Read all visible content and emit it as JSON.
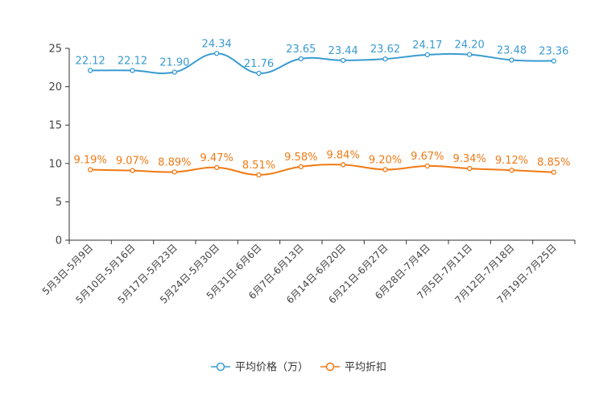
{
  "chart_data": {
    "type": "line",
    "title": "",
    "xlabel": "",
    "ylabel": "",
    "ylim": [
      0,
      25
    ],
    "yticks": [
      0,
      5,
      10,
      15,
      20,
      25
    ],
    "grid": false,
    "legend_position": "bottom",
    "categories": [
      "5月3日-5月9日",
      "5月10日-5月16日",
      "5月17日-5月23日",
      "5月24日-5月30日",
      "5月31日-6月6日",
      "6月7日-6月13日",
      "6月14日-6月20日",
      "6月21日-6月27日",
      "6月28日-7月4日",
      "7月5日-7月11日",
      "7月12日-7月18日",
      "7月19日-7月25日"
    ],
    "series": [
      {
        "name": "平均价格（万）",
        "color": "#3a9bd1",
        "values": [
          22.12,
          22.12,
          21.9,
          24.34,
          21.76,
          23.65,
          23.44,
          23.62,
          24.17,
          24.2,
          23.48,
          23.36
        ],
        "labels": [
          "22.12",
          "22.12",
          "21.90",
          "24.34",
          "21.76",
          "23.65",
          "23.44",
          "23.62",
          "24.17",
          "24.20",
          "23.48",
          "23.36"
        ]
      },
      {
        "name": "平均折扣",
        "color": "#f07a14",
        "values": [
          9.19,
          9.07,
          8.89,
          9.47,
          8.51,
          9.58,
          9.84,
          9.2,
          9.67,
          9.34,
          9.12,
          8.85
        ],
        "labels": [
          "9.19%",
          "9.07%",
          "8.89%",
          "9.47%",
          "8.51%",
          "9.58%",
          "9.84%",
          "9.20%",
          "9.67%",
          "9.34%",
          "9.12%",
          "8.85%"
        ]
      }
    ]
  }
}
